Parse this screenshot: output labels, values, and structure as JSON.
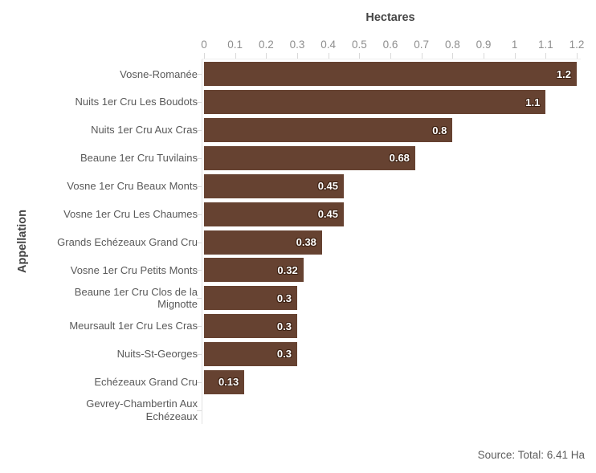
{
  "chart_data": {
    "type": "bar",
    "orientation": "horizontal",
    "title": "Hectares",
    "xlabel": "Hectares",
    "ylabel": "Appellation",
    "source": "Source: Total: 6.41 Ha",
    "categories": [
      "Vosne-Romanée",
      "Nuits 1er Cru Les Boudots",
      "Nuits 1er Cru Aux Cras",
      "Beaune 1er Cru Tuvilains",
      "Vosne 1er Cru Beaux Monts",
      "Vosne 1er Cru Les Chaumes",
      "Grands Echézeaux Grand Cru",
      "Vosne 1er Cru Petits Monts",
      "Beaune 1er Cru Clos de la Mignotte",
      "Meursault 1er Cru Les Cras",
      "Nuits-St-Georges",
      "Echézeaux Grand Cru",
      "Gevrey-Chambertin Aux Echézeaux"
    ],
    "values": [
      1.2,
      1.1,
      0.8,
      0.68,
      0.45,
      0.45,
      0.38,
      0.32,
      0.3,
      0.3,
      0.3,
      0.13,
      0
    ],
    "value_labels": [
      "1.2",
      "1.1",
      "0.8",
      "0.68",
      "0.45",
      "0.45",
      "0.38",
      "0.32",
      "0.3",
      "0.3",
      "0.3",
      "0.13",
      ""
    ],
    "xlim": [
      0,
      1.2
    ],
    "xticks": [
      0,
      0.1,
      0.2,
      0.3,
      0.4,
      0.5,
      0.6,
      0.7,
      0.8,
      0.9,
      1,
      1.1,
      1.2
    ],
    "xtick_labels": [
      "0",
      "0.1",
      "0.2",
      "0.3",
      "0.4",
      "0.5",
      "0.6",
      "0.7",
      "0.8",
      "0.9",
      "1",
      "1.1",
      "1.2"
    ],
    "grid": false,
    "legend": false,
    "bar_color": "#664231",
    "value_label_color": "#ffffff"
  }
}
